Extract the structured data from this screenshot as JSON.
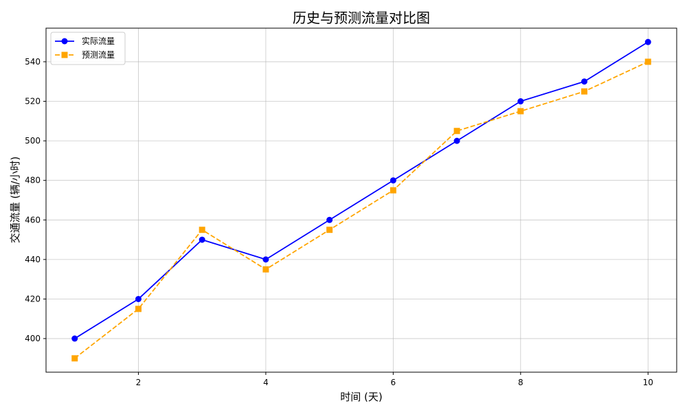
{
  "chart_data": {
    "type": "line",
    "title": "历史与预测流量对比图",
    "xlabel": "时间 (天)",
    "ylabel": "交通流量 (辆/小时)",
    "x": [
      1,
      2,
      3,
      4,
      5,
      6,
      7,
      8,
      9,
      10
    ],
    "xlim": [
      0.55,
      10.45
    ],
    "ylim": [
      383,
      557
    ],
    "xticks": [
      2,
      4,
      6,
      8,
      10
    ],
    "yticks": [
      400,
      420,
      440,
      460,
      480,
      500,
      520,
      540
    ],
    "grid": true,
    "legend_position": "top-left",
    "series": [
      {
        "name": "实际流量",
        "values": [
          400,
          420,
          450,
          440,
          460,
          480,
          500,
          520,
          530,
          550
        ],
        "color": "#0000ff",
        "line_style": "solid",
        "marker": "circle"
      },
      {
        "name": "预测流量",
        "values": [
          390,
          415,
          455,
          435,
          455,
          475,
          505,
          515,
          525,
          540
        ],
        "color": "#ffa500",
        "line_style": "dashed",
        "marker": "square"
      }
    ]
  }
}
